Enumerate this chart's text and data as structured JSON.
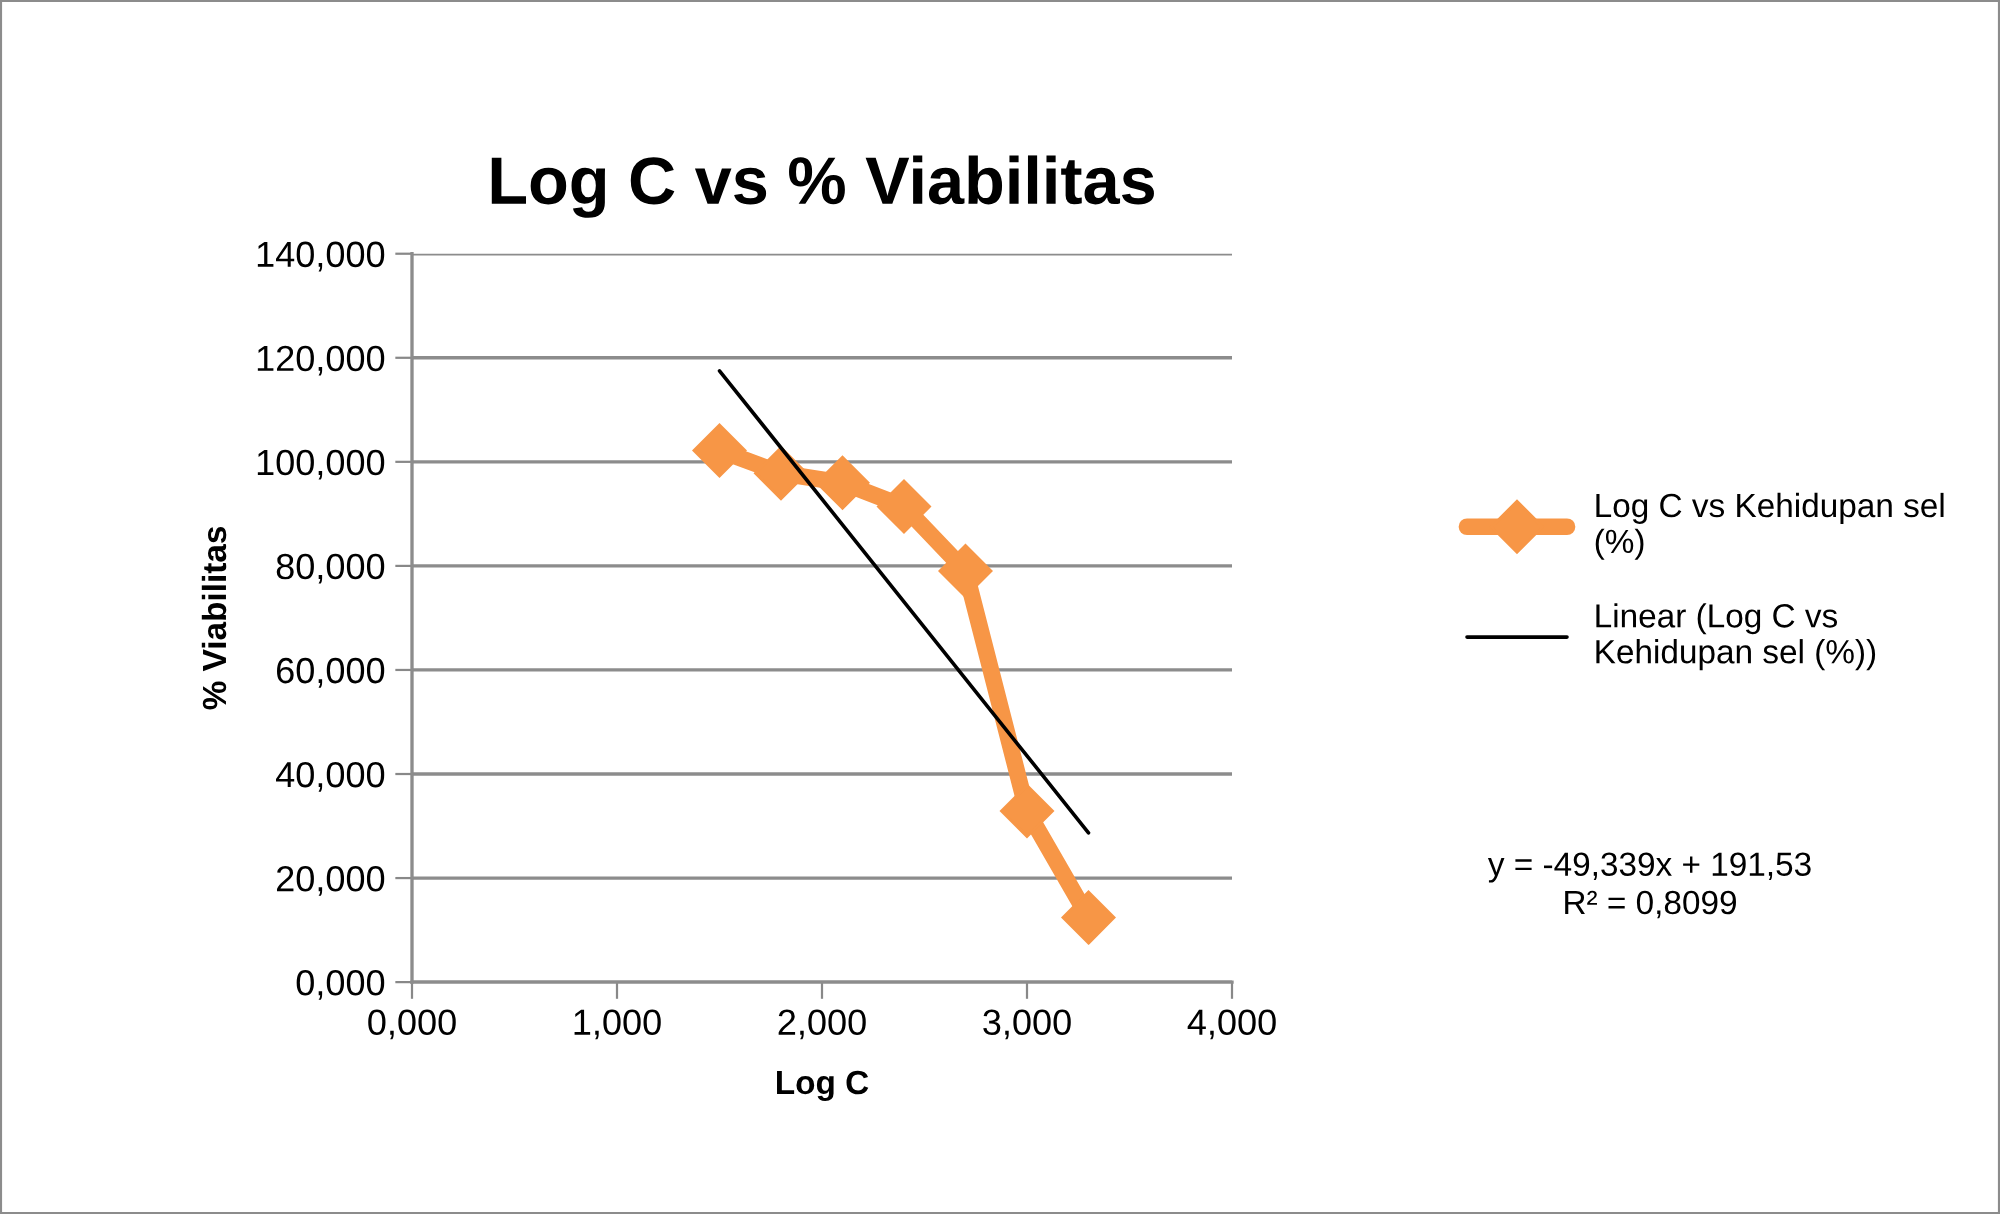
{
  "chart_data": {
    "type": "line",
    "title": "Log C vs % Viabilitas",
    "xlabel": "Log C",
    "ylabel": "% Viabilitas",
    "series": [
      {
        "name": "Log C vs Kehidupan sel\n(%)",
        "color": "#f79646",
        "x": [
          1.5,
          1.8,
          2.1,
          2.4,
          2.7,
          3.0,
          3.3
        ],
        "values": [
          102.2,
          97.8,
          96.0,
          91.4,
          79.0,
          32.9,
          12.4
        ],
        "marker": "diamond"
      },
      {
        "name": "Linear (Log C vs\nKehidupan sel (%))",
        "color": "#000000",
        "type": "line",
        "x": [
          1.5,
          3.3
        ],
        "values": [
          117.5,
          28.7
        ],
        "marker": "none"
      }
    ],
    "xlim": [
      0,
      4
    ],
    "ylim": [
      0,
      140
    ],
    "xticks": [
      {
        "value": 0,
        "label": "0,000"
      },
      {
        "value": 1,
        "label": "1,000"
      },
      {
        "value": 2,
        "label": "2,000"
      },
      {
        "value": 3,
        "label": "3,000"
      },
      {
        "value": 4,
        "label": "4,000"
      }
    ],
    "yticks": [
      {
        "value": 0,
        "label": "0,000"
      },
      {
        "value": 20,
        "label": "20,000"
      },
      {
        "value": 40,
        "label": "40,000"
      },
      {
        "value": 60,
        "label": "60,000"
      },
      {
        "value": 80,
        "label": "80,000"
      },
      {
        "value": 100,
        "label": "100,000"
      },
      {
        "value": 120,
        "label": "120,000"
      },
      {
        "value": 140,
        "label": "140,000"
      }
    ],
    "grid": "y",
    "legend": "right",
    "annotations": [
      "y = -49,339x + 191,53\nR² = 0,8099"
    ]
  }
}
